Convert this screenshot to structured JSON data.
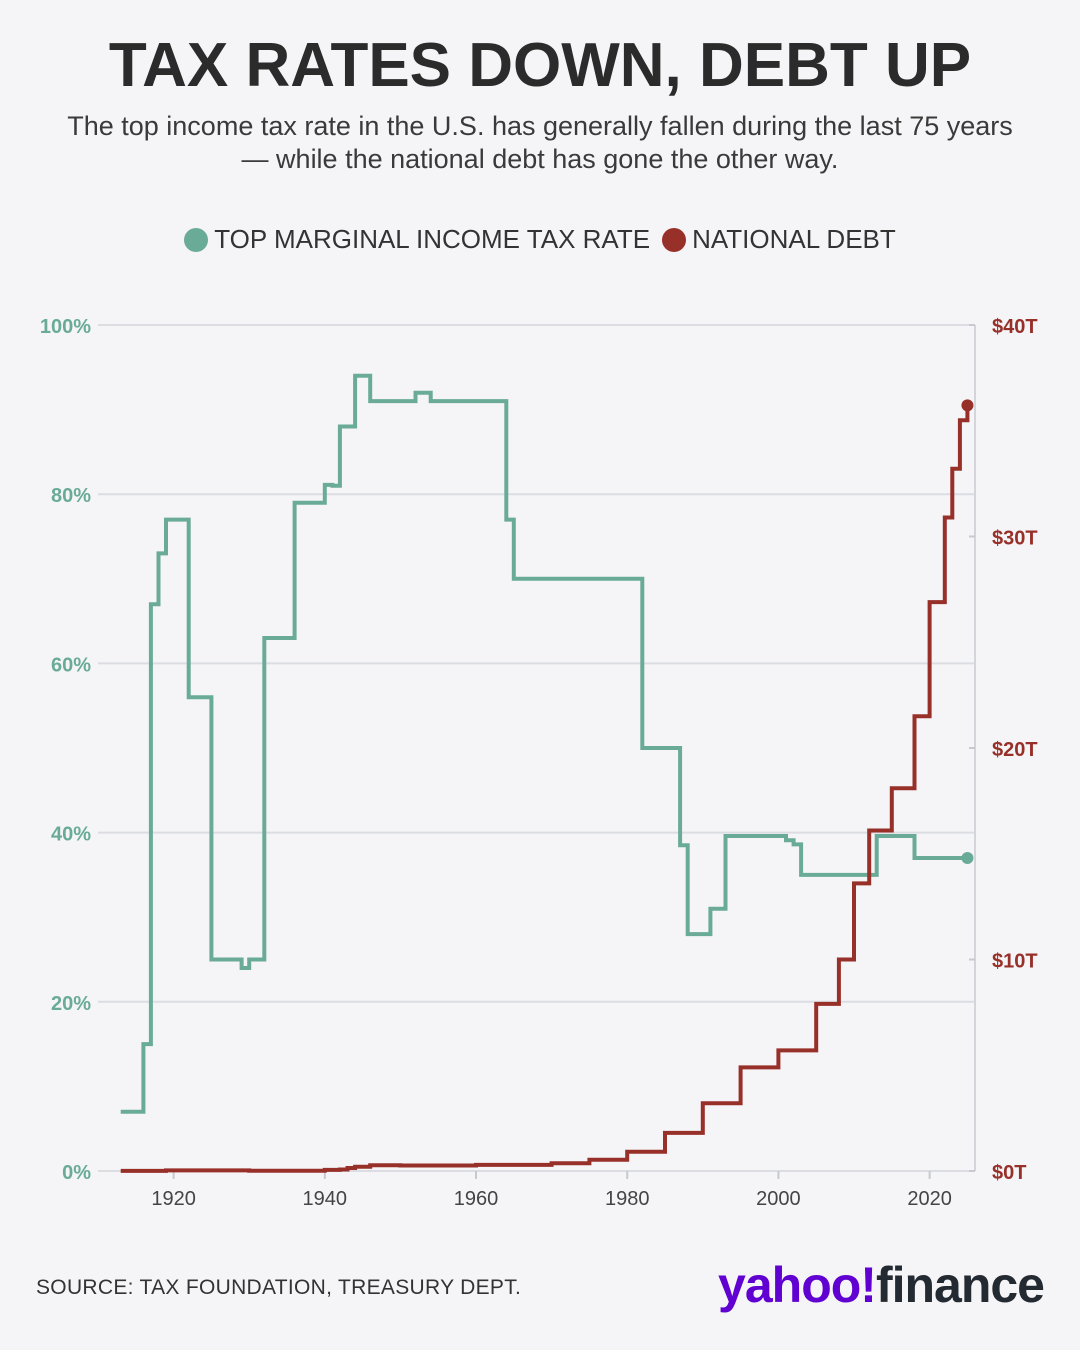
{
  "header": {
    "title": "TAX RATES DOWN, DEBT UP",
    "subtitle": "The top income tax rate in the U.S. has generally fallen during the last 75 years — while the national debt has gone the other way."
  },
  "legend": [
    {
      "label": "TOP MARGINAL INCOME TAX RATE",
      "color": "#6aab97"
    },
    {
      "label": "NATIONAL DEBT",
      "color": "#98302a"
    }
  ],
  "footer": {
    "source": "SOURCE: TAX FOUNDATION, TREASURY DEPT.",
    "brand_part1": "yahoo!",
    "brand_part2": "finance"
  },
  "chart_data": {
    "type": "line",
    "step": true,
    "title": "TAX RATES DOWN, DEBT UP",
    "xlim": [
      1910,
      2026
    ],
    "x_ticks": [
      "1920",
      "1940",
      "1960",
      "1980",
      "2000",
      "2020"
    ],
    "x_tick_values": [
      1920,
      1940,
      1960,
      1980,
      2000,
      2020
    ],
    "y_left": {
      "lim": [
        0,
        100
      ],
      "ticks": [
        "0%",
        "20%",
        "40%",
        "60%",
        "80%",
        "100%"
      ],
      "tick_values": [
        0,
        20,
        40,
        60,
        80,
        100
      ],
      "color": "#6aab97"
    },
    "y_right": {
      "lim": [
        0,
        40
      ],
      "ticks": [
        "$0T",
        "$10T",
        "$20T",
        "$30T",
        "$40T"
      ],
      "tick_values": [
        0,
        10,
        20,
        30,
        40
      ],
      "color": "#98302a"
    },
    "grid": true,
    "series": [
      {
        "name": "TOP MARGINAL INCOME TAX RATE",
        "axis": "left",
        "color": "#6aab97",
        "x": [
          1913,
          1914,
          1916,
          1917,
          1918,
          1919,
          1922,
          1925,
          1929,
          1930,
          1932,
          1934,
          1936,
          1940,
          1941,
          1942,
          1944,
          1946,
          1950,
          1951,
          1952,
          1954,
          1964,
          1965,
          1982,
          1987,
          1988,
          1991,
          1993,
          2001,
          2002,
          2003,
          2013,
          2018,
          2025
        ],
        "values": [
          7,
          7,
          15,
          67,
          73,
          77,
          56,
          25,
          24,
          25,
          63,
          63,
          79,
          81.1,
          81,
          88,
          94,
          91,
          91,
          91,
          92,
          91,
          77,
          70,
          50,
          38.5,
          28,
          31,
          39.6,
          39.1,
          38.6,
          35,
          39.6,
          37,
          37
        ]
      },
      {
        "name": "NATIONAL DEBT",
        "axis": "right",
        "color": "#98302a",
        "x": [
          1913,
          1917,
          1919,
          1930,
          1940,
          1942,
          1943,
          1944,
          1946,
          1950,
          1960,
          1970,
          1975,
          1980,
          1985,
          1990,
          1995,
          2000,
          2005,
          2008,
          2010,
          2012,
          2015,
          2018,
          2020,
          2022,
          2023,
          2024,
          2025
        ],
        "values": [
          0.003,
          0.003,
          0.027,
          0.016,
          0.05,
          0.072,
          0.14,
          0.2,
          0.27,
          0.26,
          0.29,
          0.37,
          0.53,
          0.91,
          1.8,
          3.2,
          4.9,
          5.7,
          7.9,
          10.0,
          13.6,
          16.1,
          18.1,
          21.5,
          26.9,
          30.9,
          33.2,
          35.5,
          36.2
        ]
      }
    ]
  }
}
